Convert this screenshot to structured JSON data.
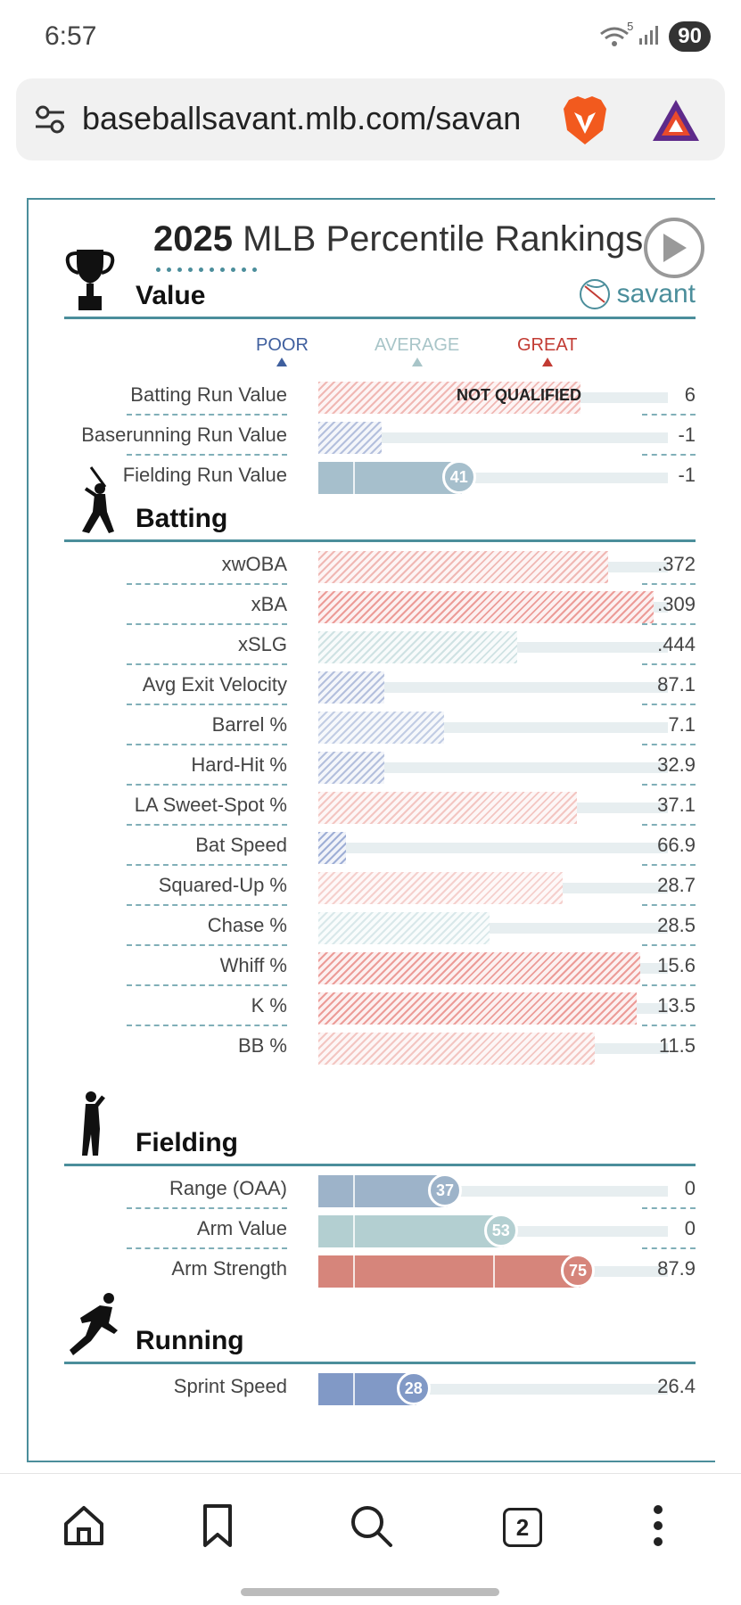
{
  "status": {
    "time": "6:57",
    "battery": "90",
    "wifi_label": "5"
  },
  "browser": {
    "url": "baseballsavant.mlb.com/savan",
    "tab_count": "2"
  },
  "card": {
    "title_year": "2025",
    "title_rest": " MLB Percentile Rankings",
    "savant_label": "savant",
    "scale": {
      "poor": "POOR",
      "average": "AVERAGE",
      "great": "GREAT"
    },
    "colors": {
      "poor": "#3f5f9e",
      "average": "#a8c5c8",
      "great": "#c23b33",
      "accent": "#4b8e9b"
    }
  },
  "sections": {
    "value": {
      "title": "Value",
      "rows": [
        {
          "label": "Batting Run Value",
          "value": "6",
          "percentile": 75,
          "qualified": false,
          "note": "NOT QUALIFIED",
          "color": "#f0b8b4"
        },
        {
          "label": "Baserunning Run Value",
          "value": "-1",
          "percentile": 18,
          "qualified": false,
          "color": "#b4c0dd"
        },
        {
          "label": "Fielding Run Value",
          "value": "-1",
          "percentile": 41,
          "qualified": true,
          "color": "#a6bfcc",
          "bubble": "41"
        }
      ]
    },
    "batting": {
      "title": "Batting",
      "rows": [
        {
          "label": "xwOBA",
          "value": ".372",
          "percentile": 83,
          "color": "#f0b8b4"
        },
        {
          "label": "xBA",
          "value": ".309",
          "percentile": 96,
          "color": "#ec9c98"
        },
        {
          "label": "xSLG",
          "value": ".444",
          "percentile": 57,
          "color": "#cfe2e3"
        },
        {
          "label": "Avg Exit Velocity",
          "value": "87.1",
          "percentile": 19,
          "color": "#b4c0dd"
        },
        {
          "label": "Barrel %",
          "value": "7.1",
          "percentile": 36,
          "color": "#c2cde4"
        },
        {
          "label": "Hard-Hit %",
          "value": "32.9",
          "percentile": 19,
          "color": "#b4c0dd"
        },
        {
          "label": "LA Sweet-Spot %",
          "value": "37.1",
          "percentile": 74,
          "color": "#f3c6c2"
        },
        {
          "label": "Bat Speed",
          "value": "66.9",
          "percentile": 8,
          "color": "#9fafd6"
        },
        {
          "label": "Squared-Up %",
          "value": "28.7",
          "percentile": 70,
          "color": "#f5d0cd"
        },
        {
          "label": "Chase %",
          "value": "28.5",
          "percentile": 49,
          "color": "#d9e8ea"
        },
        {
          "label": "Whiff %",
          "value": "15.6",
          "percentile": 92,
          "color": "#ec9c98"
        },
        {
          "label": "K %",
          "value": "13.5",
          "percentile": 91,
          "color": "#ec9c98"
        },
        {
          "label": "BB %",
          "value": "11.5",
          "percentile": 79,
          "color": "#f3c6c2"
        }
      ]
    },
    "fielding": {
      "title": "Fielding",
      "rows": [
        {
          "label": "Range (OAA)",
          "value": "0",
          "percentile": 37,
          "color": "#9db3c9",
          "bubble": "37"
        },
        {
          "label": "Arm Value",
          "value": "0",
          "percentile": 53,
          "color": "#b3cfd1",
          "bubble": "53"
        },
        {
          "label": "Arm Strength",
          "value": "87.9",
          "percentile": 75,
          "color": "#d6857b",
          "bubble": "75"
        }
      ]
    },
    "running": {
      "title": "Running",
      "rows": [
        {
          "label": "Sprint Speed",
          "value": "26.4",
          "percentile": 28,
          "color": "#8199c6",
          "bubble": "28"
        }
      ]
    }
  }
}
